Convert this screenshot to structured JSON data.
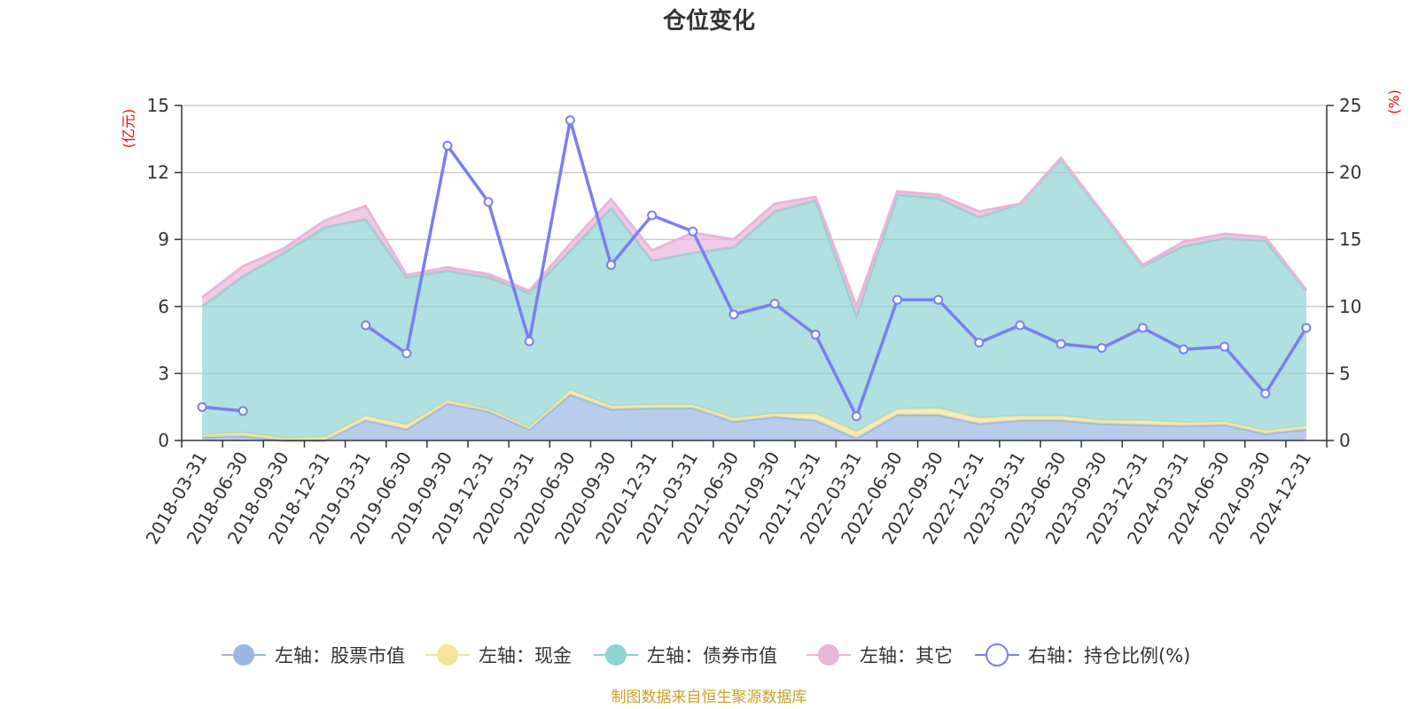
{
  "chart_data": {
    "type": "area",
    "title": "仓位变化",
    "left_unit": "(亿元)",
    "right_unit": "(%)",
    "source": "制图数据来自恒生聚源数据库",
    "left_ylim": [
      0,
      15
    ],
    "left_ticks": [
      "0",
      "3",
      "6",
      "9",
      "12",
      "15"
    ],
    "right_ylim": [
      0,
      25
    ],
    "right_ticks": [
      "0",
      "5",
      "10",
      "15",
      "20",
      "25"
    ],
    "categories": [
      "2018-03-31",
      "2018-06-30",
      "2018-09-30",
      "2018-12-31",
      "2019-03-31",
      "2019-06-30",
      "2019-09-30",
      "2019-12-31",
      "2020-03-31",
      "2020-06-30",
      "2020-09-30",
      "2020-12-31",
      "2021-03-31",
      "2021-06-30",
      "2021-09-30",
      "2021-12-31",
      "2022-03-31",
      "2022-06-30",
      "2022-09-30",
      "2022-12-31",
      "2023-03-31",
      "2023-06-30",
      "2023-09-30",
      "2023-12-31",
      "2024-03-31",
      "2024-06-30",
      "2024-09-30",
      "2024-12-31"
    ],
    "stack_series": [
      {
        "name": "左轴：股票市值",
        "color": "#9ab6e2",
        "values": [
          0.15,
          0.2,
          0,
          0,
          0.9,
          0.5,
          1.65,
          1.3,
          0.5,
          2.05,
          1.4,
          1.45,
          1.45,
          0.85,
          1.05,
          0.9,
          0.1,
          1.15,
          1.15,
          0.75,
          0.9,
          0.9,
          0.75,
          0.7,
          0.65,
          0.7,
          0.3,
          0.5
        ]
      },
      {
        "name": "左轴：现金",
        "color": "#f5e49c",
        "values": [
          0.1,
          0.15,
          0.1,
          0.15,
          0.2,
          0.2,
          0.15,
          0.1,
          0.1,
          0.2,
          0.15,
          0.15,
          0.15,
          0.15,
          0.15,
          0.3,
          0.3,
          0.25,
          0.3,
          0.25,
          0.2,
          0.2,
          0.15,
          0.2,
          0.15,
          0.15,
          0.15,
          0.15
        ]
      },
      {
        "name": "左轴：债券市值",
        "color": "#8ed3d3",
        "values": [
          5.75,
          7.0,
          8.3,
          9.4,
          8.8,
          6.6,
          5.8,
          5.9,
          6.0,
          6.25,
          8.85,
          6.45,
          6.8,
          7.65,
          9.05,
          9.55,
          5.15,
          9.6,
          9.4,
          9.0,
          9.5,
          11.5,
          9.3,
          6.9,
          7.9,
          8.2,
          8.5,
          6.05
        ]
      },
      {
        "name": "左轴：其它",
        "color": "#e9b5d9",
        "values": [
          0.4,
          0.45,
          0.2,
          0.3,
          0.6,
          0.1,
          0.15,
          0.15,
          0.1,
          0.3,
          0.4,
          0.45,
          0.9,
          0.35,
          0.35,
          0.15,
          0.45,
          0.15,
          0.15,
          0.25,
          0.0,
          0.05,
          0.05,
          0.05,
          0.2,
          0.2,
          0.15,
          0.05
        ]
      }
    ],
    "line_series": {
      "name": "右轴：持仓比例(%)",
      "color": "#7b7ef0",
      "values": [
        2.5,
        2.2,
        null,
        null,
        8.6,
        6.5,
        22.0,
        17.8,
        7.4,
        23.9,
        13.1,
        16.8,
        15.6,
        9.4,
        10.2,
        7.9,
        1.8,
        10.5,
        10.5,
        7.3,
        8.6,
        7.2,
        6.9,
        8.4,
        6.8,
        7.0,
        3.5,
        8.4
      ]
    },
    "legend": [
      {
        "label": "左轴：股票市值",
        "color": "#9ab6e2",
        "kind": "area"
      },
      {
        "label": "左轴：现金",
        "color": "#f5e49c",
        "kind": "area"
      },
      {
        "label": "左轴：债券市值",
        "color": "#8ed3d3",
        "kind": "area"
      },
      {
        "label": "左轴：其它",
        "color": "#e9b5d9",
        "kind": "area"
      },
      {
        "label": "右轴：持仓比例(%)",
        "color": "#7b7ef0",
        "kind": "line"
      }
    ]
  }
}
